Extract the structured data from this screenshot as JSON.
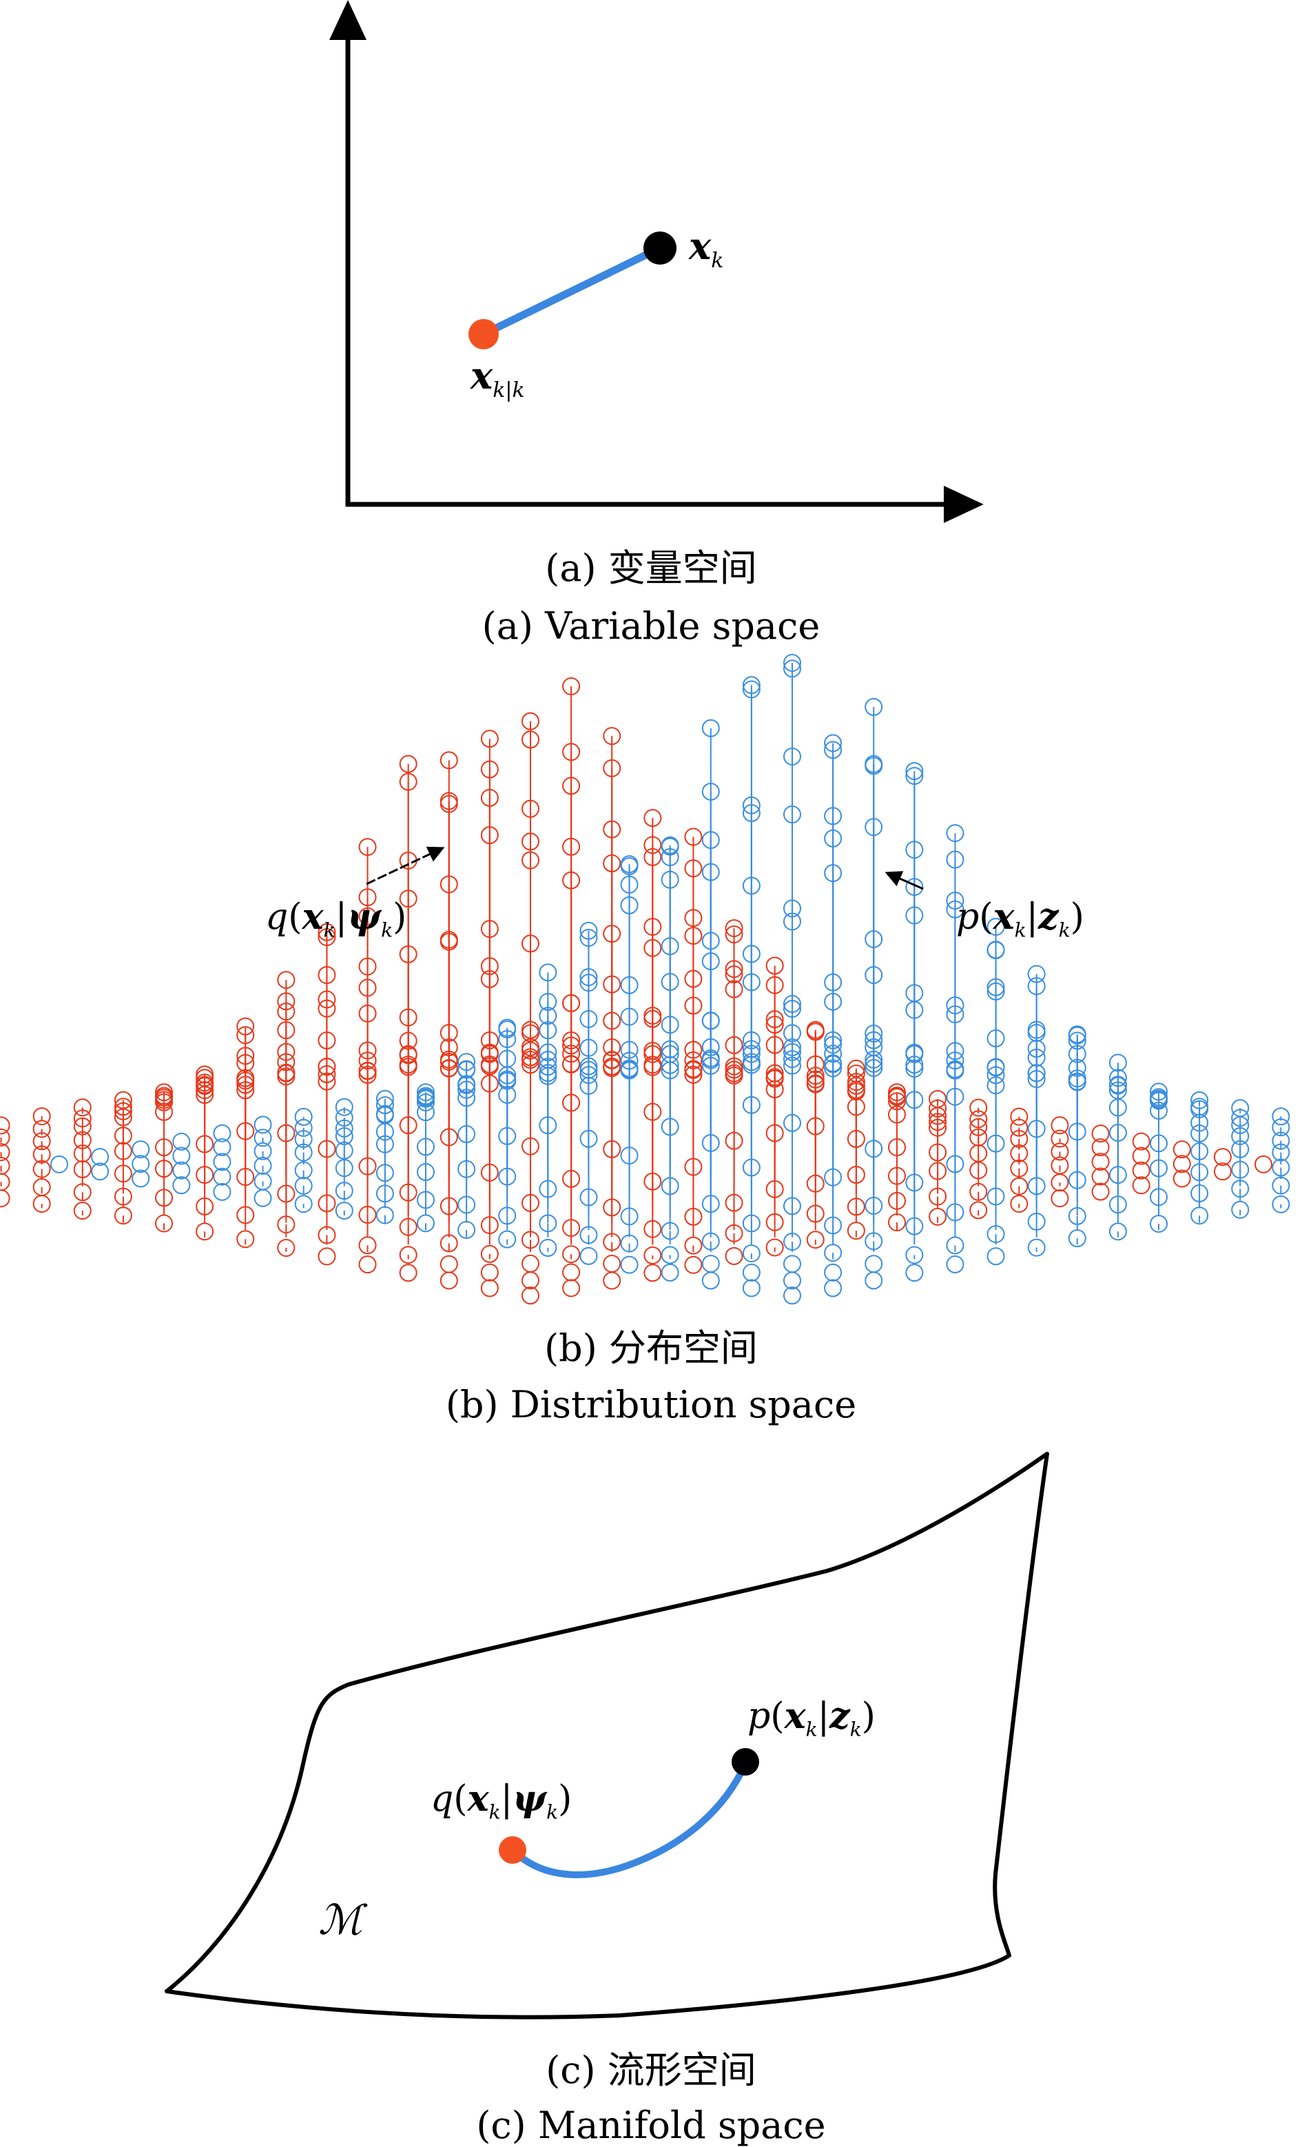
{
  "panel_a": {
    "caption_cn": "(a) 变量空间",
    "caption_en": "(a) Variable space",
    "label_true": {
      "main": "x",
      "sub": "k"
    },
    "label_est": {
      "main": "x",
      "sub": "k|k"
    },
    "colors": {
      "estimate": "#f45123",
      "true": "#000000",
      "line": "#3a86e0"
    }
  },
  "panel_b": {
    "caption_cn": "(b) 分布空间",
    "caption_en": "(b) Distribution space",
    "label_q": {
      "fn": "q",
      "arg": "x",
      "arg_sub": "k",
      "given": "ψ",
      "given_sub": "k"
    },
    "label_p": {
      "fn": "p",
      "arg": "x",
      "arg_sub": "k",
      "given": "z",
      "given_sub": "k"
    },
    "colors": {
      "q": "#e8371a",
      "p": "#3a8ee0"
    }
  },
  "panel_c": {
    "caption_cn": "(c) 流形空间",
    "caption_en": "(c) Manifold space",
    "label_manifold": "ℳ",
    "label_q": {
      "fn": "q",
      "arg": "x",
      "arg_sub": "k",
      "given": "ψ",
      "given_sub": "k"
    },
    "label_p": {
      "fn": "p",
      "arg": "x",
      "arg_sub": "k",
      "given": "z",
      "given_sub": "k"
    },
    "colors": {
      "q": "#f45123",
      "p": "#000000",
      "curve": "#3a86e0"
    }
  }
}
